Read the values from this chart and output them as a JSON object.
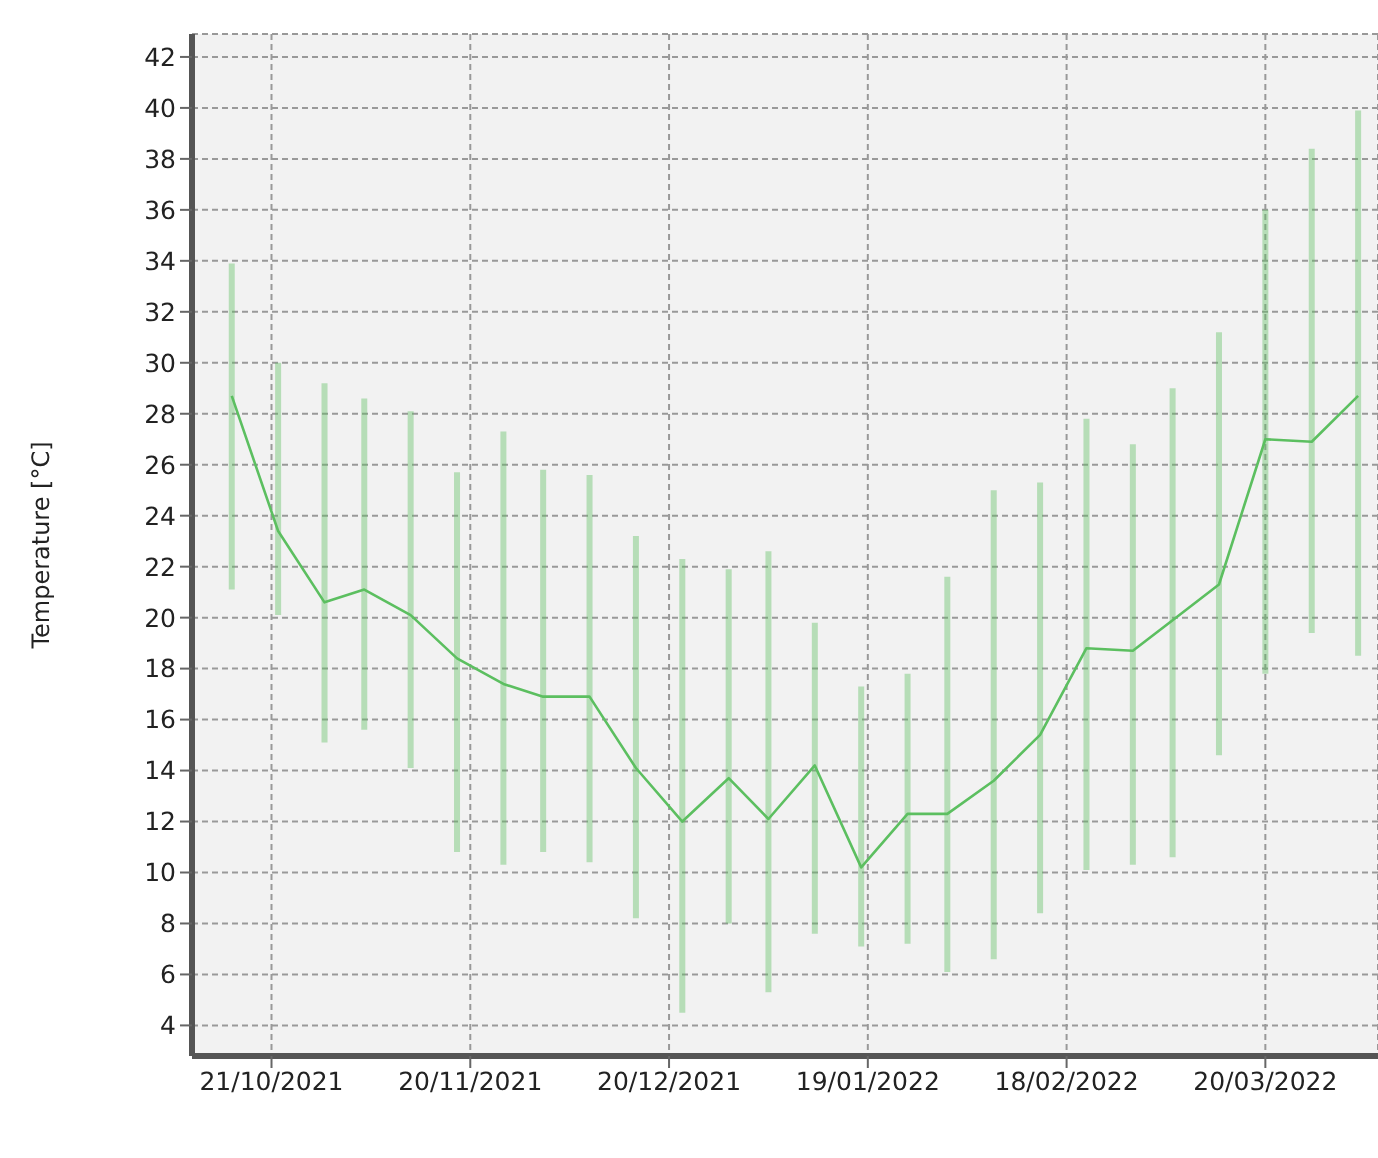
{
  "chart_data": {
    "type": "line",
    "ylabel": "Temperature [°C]",
    "x": [
      "2021-10-15",
      "2021-10-22",
      "2021-10-29",
      "2021-11-04",
      "2021-11-11",
      "2021-11-18",
      "2021-11-25",
      "2021-12-01",
      "2021-12-08",
      "2021-12-15",
      "2021-12-22",
      "2021-12-29",
      "2022-01-04",
      "2022-01-11",
      "2022-01-18",
      "2022-01-25",
      "2022-01-31",
      "2022-02-07",
      "2022-02-14",
      "2022-02-21",
      "2022-02-28",
      "2022-03-06",
      "2022-03-13",
      "2022-03-20",
      "2022-03-27",
      "2022-04-03"
    ],
    "series": [
      {
        "color": "#5cbf60",
        "values": [
          28.7,
          23.4,
          20.6,
          21.1,
          20.1,
          18.4,
          17.4,
          16.9,
          16.9,
          14.1,
          12.0,
          13.7,
          12.1,
          14.2,
          10.2,
          12.3,
          12.3,
          13.6,
          15.4,
          18.8,
          18.7,
          19.9,
          21.3,
          27.0,
          26.9,
          28.7
        ],
        "errors": [
          [
            21.1,
            33.9
          ],
          [
            20.1,
            30.0
          ],
          [
            15.1,
            29.2
          ],
          [
            15.6,
            28.6
          ],
          [
            14.1,
            28.1
          ],
          [
            10.8,
            25.7
          ],
          [
            10.3,
            27.3
          ],
          [
            10.8,
            25.8
          ],
          [
            10.4,
            25.6
          ],
          [
            8.2,
            23.2
          ],
          [
            4.5,
            22.3
          ],
          [
            8.0,
            21.9
          ],
          [
            5.3,
            22.6
          ],
          [
            7.6,
            19.8
          ],
          [
            7.1,
            17.3
          ],
          [
            7.2,
            17.8
          ],
          [
            6.1,
            21.6
          ],
          [
            6.6,
            25.0
          ],
          [
            8.4,
            25.3
          ],
          [
            10.1,
            27.8
          ],
          [
            10.3,
            26.8
          ],
          [
            10.6,
            29.0
          ],
          [
            14.6,
            31.2
          ],
          [
            17.8,
            36.0
          ],
          [
            19.4,
            38.4
          ],
          [
            18.5,
            39.9
          ]
        ]
      }
    ],
    "xlim": [
      "2021-10-09",
      "2022-04-06"
    ],
    "xticks": [
      {
        "value": "2021-10-21",
        "label": "21/10/2021"
      },
      {
        "value": "2021-11-20",
        "label": "20/11/2021"
      },
      {
        "value": "2021-12-20",
        "label": "20/12/2021"
      },
      {
        "value": "2022-01-19",
        "label": "19/01/2022"
      },
      {
        "value": "2022-02-18",
        "label": "18/02/2022"
      },
      {
        "value": "2022-03-20",
        "label": "20/03/2022"
      }
    ],
    "ylim": [
      2.8,
      42.9
    ],
    "yticks": [
      4,
      6,
      8,
      10,
      12,
      14,
      16,
      18,
      20,
      22,
      24,
      26,
      28,
      30,
      32,
      34,
      36,
      38,
      40,
      42
    ],
    "grid": true,
    "marker": "none",
    "line_style": "solid",
    "legend": false
  }
}
